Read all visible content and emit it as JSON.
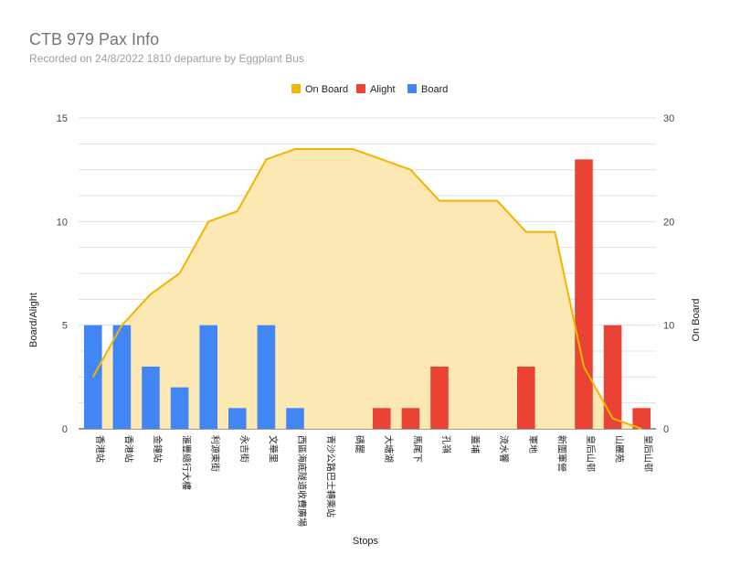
{
  "title": "CTB 979 Pax Info",
  "subtitle": "Recorded on 24/8/2022 1810 departure by Eggplant Bus",
  "chart_data": {
    "type": "bar",
    "xlabel": "Stops",
    "ylabel_left": "Board/Alight",
    "ylabel_right": "On Board",
    "ylim_left": [
      0,
      15
    ],
    "ylim_right": [
      0,
      30
    ],
    "yticks_left": [
      "0",
      "5",
      "10",
      "15"
    ],
    "yticks_right": [
      "0",
      "10",
      "20",
      "30"
    ],
    "legend_position": "top-center",
    "grid": true,
    "categories": [
      "香港站",
      "香港站",
      "金鐘站",
      "滙豐總行大樓",
      "利源東街",
      "永吉街",
      "文華里",
      "西區海底隧道收費廣場",
      "青沙公路巴士轉乘站",
      "碼罷",
      "大塘湖",
      "馬尾下",
      "孔嶺",
      "蓋埔",
      "流水響",
      "軍地",
      "新圍軍營",
      "皇后山邨",
      "山麗苑",
      "皇后山邨"
    ],
    "series": [
      {
        "name": "On Board",
        "type": "area",
        "axis": "right",
        "color": "#f4b400",
        "fill": "#fce8b2",
        "values": [
          5,
          10,
          13,
          15,
          20,
          21,
          26,
          27,
          27,
          27,
          26,
          25,
          22,
          22,
          22,
          19,
          19,
          6,
          1,
          0
        ]
      },
      {
        "name": "Alight",
        "type": "bar",
        "axis": "left",
        "color": "#ea4335",
        "values": [
          0,
          0,
          0,
          0,
          0,
          0,
          0,
          0,
          0,
          0,
          1,
          1,
          3,
          0,
          0,
          3,
          0,
          13,
          5,
          1
        ]
      },
      {
        "name": "Board",
        "type": "bar",
        "axis": "left",
        "color": "#4285f4",
        "values": [
          5,
          5,
          3,
          2,
          5,
          1,
          5,
          1,
          0,
          0,
          0,
          0,
          0,
          0,
          0,
          0,
          0,
          0,
          0,
          0
        ]
      }
    ]
  }
}
